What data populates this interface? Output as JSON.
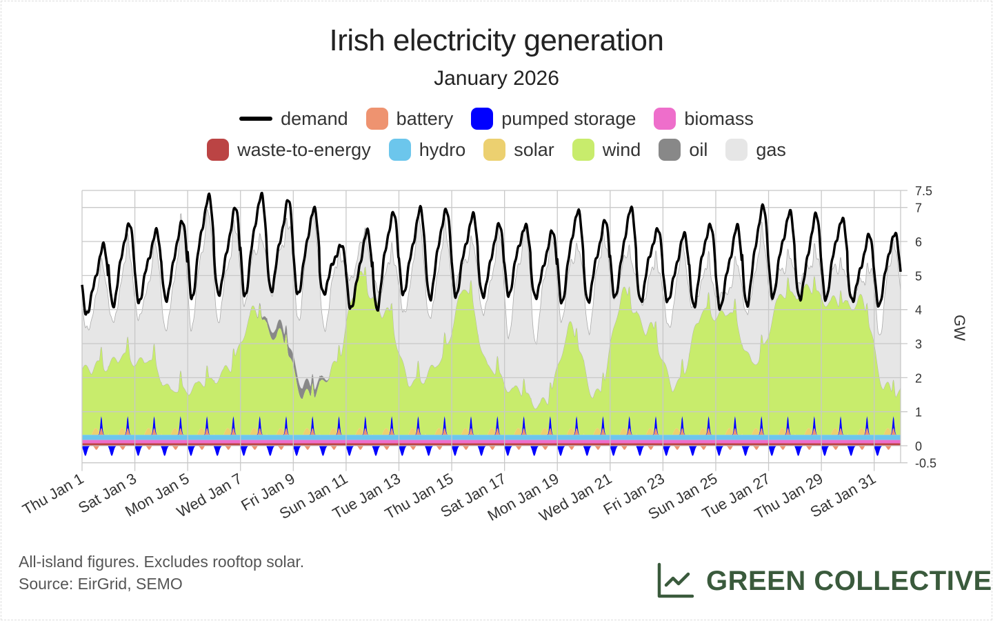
{
  "title": "Irish electricity generation",
  "subtitle": "January 2026",
  "legend": [
    {
      "key": "demand",
      "label": "demand",
      "color": "#000000",
      "kind": "line"
    },
    {
      "key": "battery",
      "label": "battery",
      "color": "#ee9370"
    },
    {
      "key": "pumped",
      "label": "pumped storage",
      "color": "#0000ff"
    },
    {
      "key": "biomass",
      "label": "biomass",
      "color": "#ee6ecb"
    },
    {
      "key": "waste",
      "label": "waste-to-energy",
      "color": "#bb4444"
    },
    {
      "key": "hydro",
      "label": "hydro",
      "color": "#6cc6ec"
    },
    {
      "key": "solar",
      "label": "solar",
      "color": "#ecd070"
    },
    {
      "key": "wind",
      "label": "wind",
      "color": "#c8ec6c"
    },
    {
      "key": "oil",
      "label": "oil",
      "color": "#888888"
    },
    {
      "key": "gas",
      "label": "gas",
      "color": "#e6e6e6"
    }
  ],
  "footnote": "All-island figures. Excludes rooftop solar.",
  "source": "Source: EirGrid, SEMO",
  "logo_text": "GREEN COLLECTIVE",
  "brand_color": "#3a5a3c",
  "chart_data": {
    "type": "area",
    "stacked": true,
    "ylabel": "GW",
    "ylim": [
      -0.5,
      7.5
    ],
    "yticks": [
      -0.5,
      0,
      1,
      2,
      3,
      4,
      5,
      6,
      7,
      7.5
    ],
    "ytick_labels": [
      "-0.5",
      "0",
      "1",
      "2",
      "3",
      "4",
      "5",
      "6",
      "7",
      "7.5"
    ],
    "xlim": [
      "2026-01-01",
      "2026-02-01"
    ],
    "xtick_labels": [
      "Thu Jan 1",
      "Sat Jan 3",
      "Mon Jan 5",
      "Wed Jan 7",
      "Fri Jan 9",
      "Sun Jan 11",
      "Tue Jan 13",
      "Thu Jan 15",
      "Sat Jan 17",
      "Mon Jan 19",
      "Wed Jan 21",
      "Fri Jan 23",
      "Sun Jan 25",
      "Tue Jan 27",
      "Thu Jan 29",
      "Sat Jan 31"
    ],
    "grid": true,
    "legend_position": "top",
    "days": [
      "2026-01-01",
      "2026-01-02",
      "2026-01-03",
      "2026-01-04",
      "2026-01-05",
      "2026-01-06",
      "2026-01-07",
      "2026-01-08",
      "2026-01-09",
      "2026-01-10",
      "2026-01-11",
      "2026-01-12",
      "2026-01-13",
      "2026-01-14",
      "2026-01-15",
      "2026-01-16",
      "2026-01-17",
      "2026-01-18",
      "2026-01-19",
      "2026-01-20",
      "2026-01-21",
      "2026-01-22",
      "2026-01-23",
      "2026-01-24",
      "2026-01-25",
      "2026-01-26",
      "2026-01-27",
      "2026-01-28",
      "2026-01-29",
      "2026-01-30",
      "2026-01-31"
    ],
    "demand_daily_peak": [
      5.9,
      6.6,
      6.4,
      6.6,
      7.5,
      7.0,
      7.5,
      7.3,
      7.0,
      6.0,
      6.3,
      7.0,
      7.0,
      7.0,
      6.9,
      6.5,
      6.6,
      6.3,
      7.0,
      6.7,
      7.0,
      6.5,
      6.2,
      6.6,
      6.5,
      7.1,
      7.0,
      6.8,
      6.8,
      6.2,
      6.3
    ],
    "demand_daily_trough": [
      3.8,
      4.2,
      4.2,
      4.3,
      4.4,
      4.4,
      4.5,
      4.5,
      4.5,
      4.5,
      4.0,
      4.1,
      4.4,
      4.4,
      4.4,
      4.4,
      4.5,
      4.3,
      4.3,
      4.2,
      4.4,
      4.3,
      4.2,
      4.2,
      4.0,
      4.2,
      4.4,
      4.3,
      4.4,
      4.2,
      4.2
    ],
    "wind_daily_mean": [
      1.9,
      2.2,
      2.1,
      1.2,
      1.4,
      1.8,
      3.5,
      2.8,
      1.0,
      1.8,
      4.5,
      3.5,
      1.4,
      2.0,
      4.2,
      1.8,
      1.2,
      0.8,
      3.0,
      1.0,
      4.0,
      3.0,
      1.3,
      3.5,
      3.5,
      2.0,
      4.0,
      4.2,
      3.8,
      3.8,
      1.2
    ],
    "gas_daily_mean": [
      1.9,
      2.15,
      2.15,
      3.2,
      3.5,
      2.85,
      1.45,
      2.05,
      3.7,
      2.4,
      0.8,
      1.0,
      3.25,
      2.65,
      0.8,
      2.6,
      3.3,
      3.45,
      1.6,
      3.4,
      0.8,
      1.35,
      2.85,
      0.9,
      0.7,
      2.6,
      0.7,
      0.6,
      0.8,
      0.5,
      3.0
    ],
    "oil_daily_mean": [
      0,
      0,
      0,
      0,
      0,
      0,
      0,
      0.25,
      0.3,
      0,
      0,
      0,
      0,
      0,
      0,
      0,
      0,
      0,
      0,
      0,
      0,
      0,
      0,
      0,
      0,
      0,
      0,
      0,
      0,
      0,
      0
    ],
    "typical_daily": {
      "waste": 0.07,
      "biomass": 0.1,
      "hydro": 0.15,
      "solar_peak": 0.2,
      "battery_peak": 0.2,
      "pumped_peak": 0.35,
      "pumped_min": -0.3
    }
  }
}
